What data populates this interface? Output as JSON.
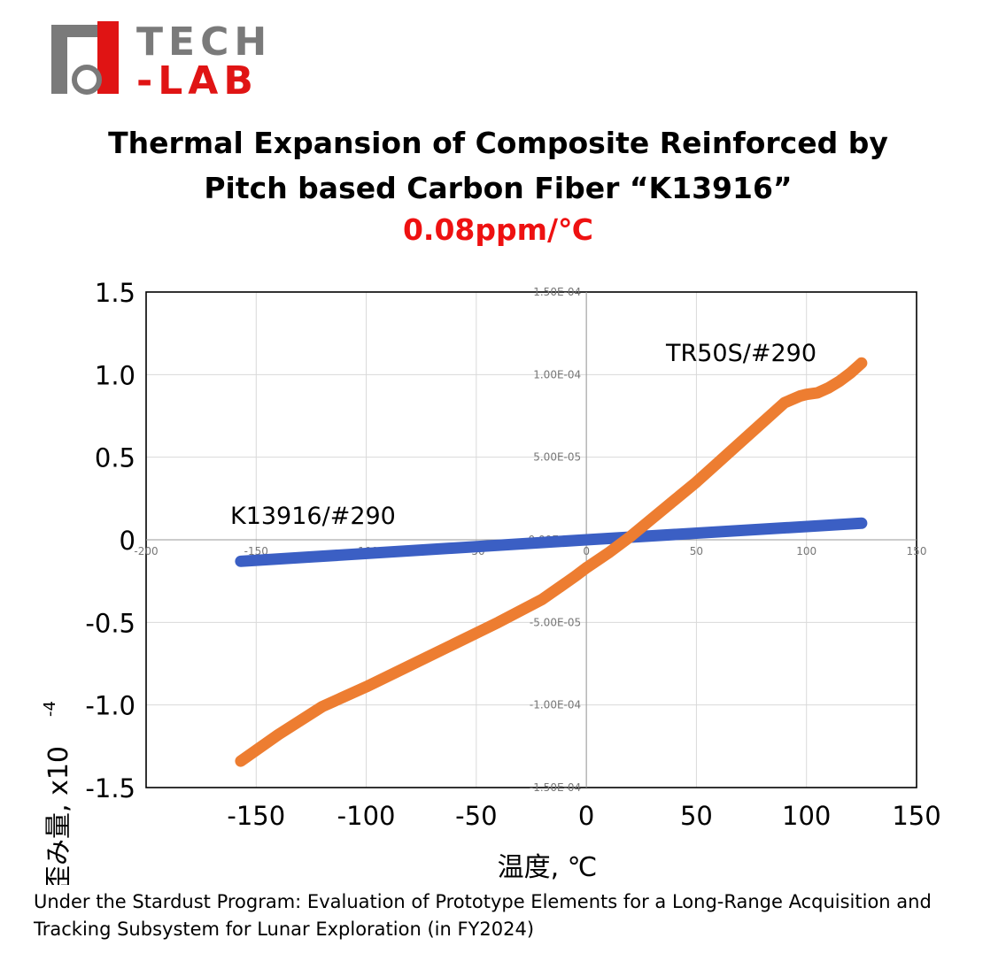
{
  "logo": {
    "text_top": "TECH",
    "text_bottom": "-LAB"
  },
  "title": {
    "line1": "Thermal Expansion of Composite Reinforced by",
    "line2": "Pitch based Carbon Fiber “K13916”",
    "value": "0.08ppm/℃"
  },
  "chart_data": {
    "type": "line",
    "xlabel": "温度, ℃",
    "ylabel": "歪み量, x10",
    "ylabel_exponent": "-4",
    "xlim": [
      -200,
      150
    ],
    "ylim": [
      -1.5,
      1.5
    ],
    "x_ticks": [
      -150,
      -100,
      -50,
      0,
      50,
      100,
      150
    ],
    "y_ticks": [
      -1.5,
      -1.0,
      -0.5,
      0,
      0.5,
      1.0,
      1.5
    ],
    "x_tick_labels": [
      "-150",
      "-100",
      "-50",
      "0",
      "50",
      "100",
      "150"
    ],
    "y_tick_labels": [
      "-1.5",
      "-1.0",
      "-0.5",
      "0",
      "0.5",
      "1.0",
      "1.5"
    ],
    "inner_x_tick_labels": [
      "-200",
      "-150",
      "-100",
      "-50",
      "0",
      "50",
      "100",
      "150"
    ],
    "inner_y_tick_labels": [
      "1.50E-04",
      "1.00E-04",
      "5.00E-05",
      "0.00E+00",
      "-5.00E-05",
      "-1.00E-04",
      "-1.50E-04"
    ],
    "grid": true,
    "series": [
      {
        "name": "K13916/#290",
        "color": "#3b5fc4",
        "x": [
          -157,
          0,
          125
        ],
        "y": [
          -0.13,
          0.0,
          0.1
        ]
      },
      {
        "name": "TR50S/#290",
        "color": "#ed7d31",
        "x": [
          -157,
          -140,
          -120,
          -100,
          -80,
          -60,
          -40,
          -20,
          -5,
          0,
          10,
          20,
          30,
          40,
          50,
          60,
          70,
          80,
          90,
          97,
          100,
          105,
          110,
          115,
          120,
          125
        ],
        "y": [
          -1.34,
          -1.18,
          -1.01,
          -0.89,
          -0.76,
          -0.63,
          -0.5,
          -0.36,
          -0.22,
          -0.17,
          -0.08,
          0.02,
          0.13,
          0.24,
          0.35,
          0.47,
          0.59,
          0.71,
          0.83,
          0.87,
          0.88,
          0.89,
          0.92,
          0.96,
          1.01,
          1.07
        ]
      }
    ]
  },
  "footer": {
    "line1": "Under the Stardust Program: Evaluation of Prototype Elements for a Long-Range Acquisition and",
    "line2": "Tracking Subsystem for Lunar Exploration (in FY2024)"
  }
}
